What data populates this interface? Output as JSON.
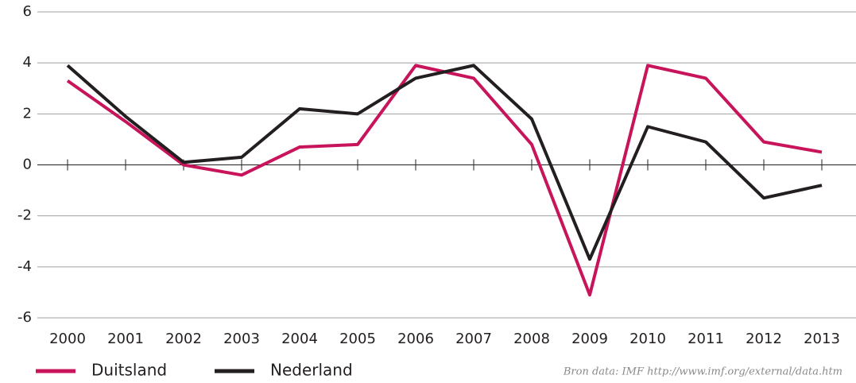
{
  "chart_data": {
    "type": "line",
    "categories": [
      "2000",
      "2001",
      "2002",
      "2003",
      "2004",
      "2005",
      "2006",
      "2007",
      "2008",
      "2009",
      "2010",
      "2011",
      "2012",
      "2013"
    ],
    "series": [
      {
        "name": "Duitsland",
        "color": "#c8145a",
        "values": [
          3.3,
          1.7,
          0.0,
          -0.4,
          0.7,
          0.8,
          3.9,
          3.4,
          0.8,
          -5.1,
          3.9,
          3.4,
          0.9,
          0.5
        ]
      },
      {
        "name": "Nederland",
        "color": "#231f20",
        "values": [
          3.9,
          1.9,
          0.1,
          0.3,
          2.2,
          2.0,
          3.4,
          3.9,
          1.8,
          -3.7,
          1.5,
          0.9,
          -1.3,
          -0.8
        ]
      }
    ],
    "ylim": [
      -6,
      6
    ],
    "yticks": [
      -6,
      -4,
      -2,
      0,
      2,
      4,
      6
    ],
    "grid": true,
    "annotation": "Bron data: IMF http://www.imf.org/external/data.htm"
  }
}
